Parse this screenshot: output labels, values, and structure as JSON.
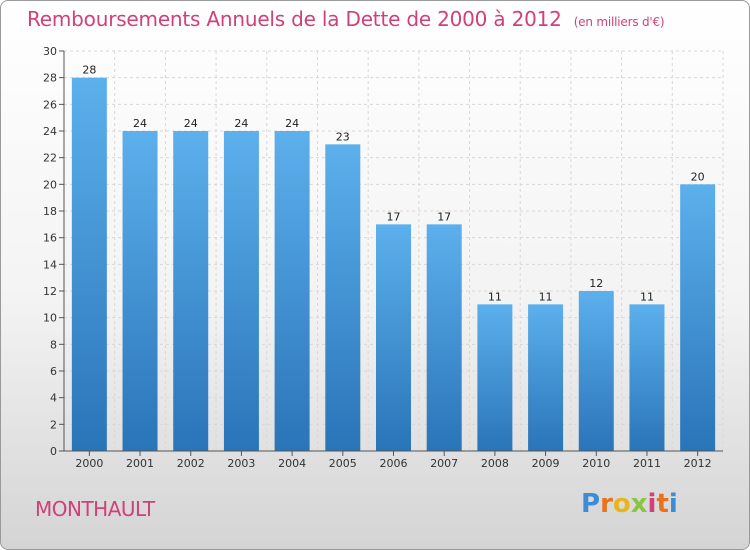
{
  "title": "Remboursements Annuels de la Dette de 2000 à 2012",
  "unit": "(en milliers d'€)",
  "commune": "MONTHAULT",
  "brand": {
    "letters": [
      "P",
      "r",
      "o",
      "x",
      "i",
      "t",
      "i"
    ],
    "colors": [
      "#3b8ed6",
      "#e8731c",
      "#e8b51c",
      "#8ac53f",
      "#d0407a",
      "#e8731c",
      "#3b8ed6"
    ]
  },
  "colors": {
    "bar": "#3d95dd",
    "bar_light": "#5aaeea",
    "bar_dark": "#2a72b5",
    "title": "#d0407a"
  },
  "chart_data": {
    "type": "bar",
    "categories": [
      "2000",
      "2001",
      "2002",
      "2003",
      "2004",
      "2005",
      "2006",
      "2007",
      "2008",
      "2009",
      "2010",
      "2011",
      "2012"
    ],
    "values": [
      28,
      24,
      24,
      24,
      24,
      23,
      17,
      17,
      11,
      11,
      12,
      11,
      20
    ],
    "title": "Remboursements Annuels de la Dette de 2000 à 2012",
    "xlabel": "",
    "ylabel": "",
    "ylim": [
      0,
      30
    ],
    "yticks": [
      0,
      2,
      4,
      6,
      8,
      10,
      12,
      14,
      16,
      18,
      20,
      22,
      24,
      26,
      28,
      30
    ],
    "grid": true,
    "data_labels": true
  }
}
